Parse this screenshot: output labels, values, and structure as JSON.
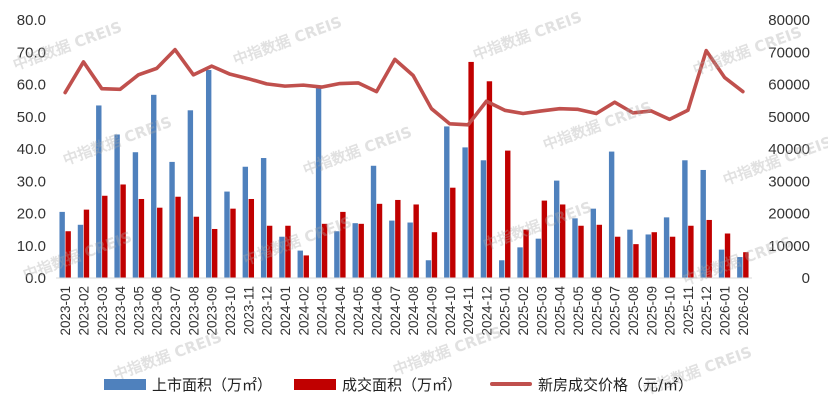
{
  "watermark": "中指数据 CREIS",
  "legend": {
    "listing": "上市面积（万㎡）",
    "deal": "成交面积（万㎡）",
    "price": "新房成交价格（元/㎡）"
  },
  "colors": {
    "listing": "#4f81bd",
    "deal": "#c00000",
    "price": "#c0504d",
    "axis": "#d9d9d9"
  },
  "chart_data": {
    "type": "bar",
    "grid": false,
    "legend_position": "bottom",
    "categories": [
      "2023-01",
      "2023-02",
      "2023-03",
      "2023-04",
      "2023-05",
      "2023-06",
      "2023-07",
      "2023-08",
      "2023-09",
      "2023-10",
      "2023-11",
      "2023-12",
      "2024-01",
      "2024-02",
      "2024-03",
      "2024-04",
      "2024-05",
      "2024-06",
      "2024-07",
      "2024-08",
      "2024-09",
      "2024-10",
      "2024-11",
      "2024-12",
      "2025-01",
      "2025-02",
      "2025-03",
      "2025-04",
      "2025-05",
      "2025-06",
      "2025-07",
      "2025-08",
      "2025-09",
      "2025-10",
      "2025-11",
      "2025-12",
      "2026-01",
      "2026-02"
    ],
    "y_left": {
      "min": 0,
      "max": 80,
      "ticks": [
        "0.0",
        "10.0",
        "20.0",
        "30.0",
        "40.0",
        "50.0",
        "60.0",
        "70.0",
        "80.0"
      ]
    },
    "y_right": {
      "min": 0,
      "max": 80000,
      "ticks": [
        "0",
        "10000",
        "20000",
        "30000",
        "40000",
        "50000",
        "60000",
        "70000",
        "80000"
      ]
    },
    "series": [
      {
        "name": "上市面积（万㎡）",
        "type": "bar",
        "axis": "left",
        "values": [
          20.5,
          16.5,
          53.5,
          44.5,
          39.0,
          56.8,
          36.0,
          52.0,
          64.5,
          26.8,
          34.5,
          37.2,
          12.8,
          8.5,
          59.0,
          14.5,
          17.0,
          34.8,
          17.8,
          17.2,
          5.5,
          47.0,
          40.5,
          36.5,
          5.5,
          9.5,
          12.2,
          30.2,
          18.5,
          21.5,
          39.2,
          15.0,
          13.5,
          18.8,
          36.5,
          33.5,
          8.8,
          6.5
        ]
      },
      {
        "name": "成交面积（万㎡）",
        "type": "bar",
        "axis": "left",
        "values": [
          14.5,
          21.2,
          25.5,
          29.0,
          24.5,
          21.8,
          25.2,
          19.0,
          15.2,
          21.5,
          24.5,
          16.2,
          16.2,
          7.0,
          16.8,
          20.5,
          16.8,
          23.0,
          24.2,
          22.8,
          14.2,
          28.0,
          67.0,
          61.0,
          39.5,
          15.0,
          24.0,
          22.8,
          16.2,
          16.5,
          12.8,
          10.5,
          14.2,
          12.8,
          16.2,
          18.0,
          13.8,
          8.0
        ]
      },
      {
        "name": "新房成交价格（元/㎡）",
        "type": "line",
        "axis": "right",
        "values": [
          57500,
          67000,
          58700,
          58500,
          63000,
          65000,
          70800,
          63000,
          65700,
          63200,
          61800,
          60200,
          59500,
          59800,
          59200,
          60300,
          60500,
          57800,
          67800,
          62800,
          52500,
          47800,
          47500,
          54800,
          52000,
          51000,
          51800,
          52500,
          52300,
          51000,
          54500,
          51200,
          51800,
          49200,
          52000,
          70500,
          62200,
          57800
        ]
      }
    ]
  }
}
